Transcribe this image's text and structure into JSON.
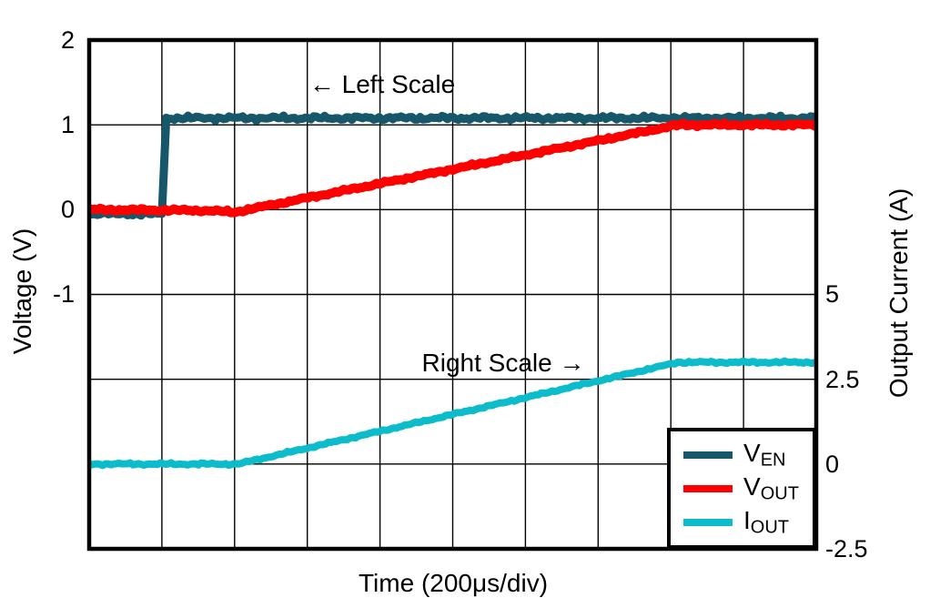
{
  "figure": {
    "xlabel": "Time (200μs/div)",
    "ylabel_left": "Voltage (V)",
    "ylabel_right": "Output Current (A)",
    "annotation_left": "← Left Scale",
    "annotation_right": "Right Scale →",
    "left_ticks": [
      "2",
      "1",
      "0",
      "-1"
    ],
    "right_ticks": [
      "5",
      "2.5",
      "0",
      "-2.5"
    ],
    "grid_color": "#000000",
    "border_color": "#000000",
    "background": "#ffffff"
  },
  "legend": {
    "items": [
      {
        "main": "V",
        "sub": "EN",
        "color": "#16576a"
      },
      {
        "main": "V",
        "sub": "OUT",
        "color": "#ff0000"
      },
      {
        "main": "I",
        "sub": "OUT",
        "color": "#0cbccb"
      }
    ]
  },
  "chart_data": {
    "type": "line",
    "title": "",
    "xlabel": "Time (200μs/div)",
    "x_divisions": 10,
    "y_divisions": 6,
    "grid": true,
    "legend_position": "bottom-right",
    "axes": {
      "left": {
        "label": "Voltage (V)",
        "ticks": [
          2,
          1,
          0,
          -1
        ],
        "range_top": 2,
        "range_bottom": -4
      },
      "right": {
        "label": "Output Current (A)",
        "ticks": [
          5,
          2.5,
          0,
          -2.5
        ],
        "range_top": 12.5,
        "range_bottom": -2.5
      }
    },
    "series": [
      {
        "name": "V_EN",
        "axis": "left",
        "color": "#16576a",
        "width": 9,
        "noise": 2.2,
        "points": [
          [
            0,
            -0.05
          ],
          [
            1.0,
            -0.05
          ],
          [
            1.06,
            1.08
          ],
          [
            10,
            1.08
          ]
        ]
      },
      {
        "name": "V_OUT",
        "axis": "left",
        "color": "#ff0000",
        "width": 10,
        "noise": 1.6,
        "points": [
          [
            0,
            0
          ],
          [
            1.6,
            -0.01
          ],
          [
            2.0,
            -0.03
          ],
          [
            8.1,
            1.0
          ],
          [
            10,
            1.0
          ]
        ]
      },
      {
        "name": "I_OUT",
        "axis": "right",
        "color": "#0cbccb",
        "width": 8,
        "noise": 1.2,
        "points": [
          [
            0,
            0
          ],
          [
            2.05,
            0
          ],
          [
            8.1,
            3.0
          ],
          [
            10,
            3.0
          ]
        ]
      }
    ]
  }
}
